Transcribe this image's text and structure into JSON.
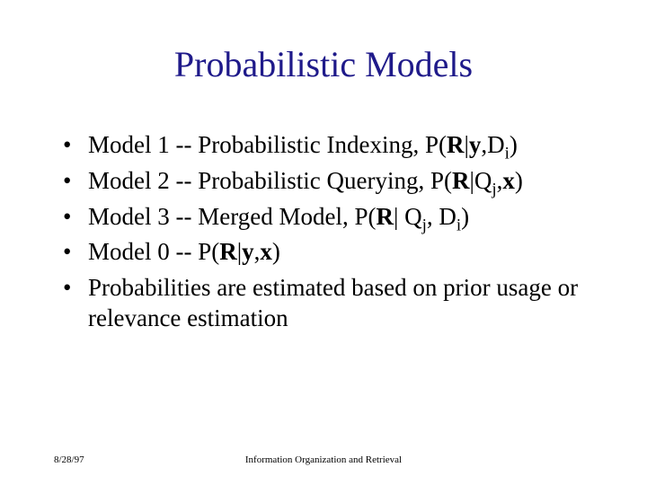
{
  "slide": {
    "title": "Probabilistic Models",
    "title_color": "#1f1a8a",
    "title_fontsize": 40,
    "body_fontsize": 27,
    "body_color": "#000000",
    "background_color": "#ffffff",
    "bullets": [
      {
        "prefix": "Model 1 -- Probabilistic Indexing, P(",
        "bold1": "R",
        "mid1": "|",
        "bold2": "y",
        "mid2": ",D",
        "sub": "i",
        "suffix": ")"
      },
      {
        "prefix": "Model 2 -- Probabilistic Querying, P(",
        "bold1": "R",
        "mid1": "|Q",
        "sub1": "j",
        "mid2": ",",
        "bold2": "x",
        "suffix": ")"
      },
      {
        "prefix": "Model 3 -- Merged Model, P(",
        "bold1": "R",
        "mid1": "| Q",
        "sub1": "j",
        "mid2": ", D",
        "sub2": "i",
        "suffix": ")"
      },
      {
        "prefix": "Model 0 -- P(",
        "bold1": "R",
        "mid1": "|",
        "bold2": "y",
        "mid2": ",",
        "bold3": "x",
        "suffix": ")"
      },
      {
        "prefix": "Probabilities are estimated based on prior usage or relevance estimation"
      }
    ],
    "footer_left": "8/28/97",
    "footer_center": "Information Organization and Retrieval"
  }
}
